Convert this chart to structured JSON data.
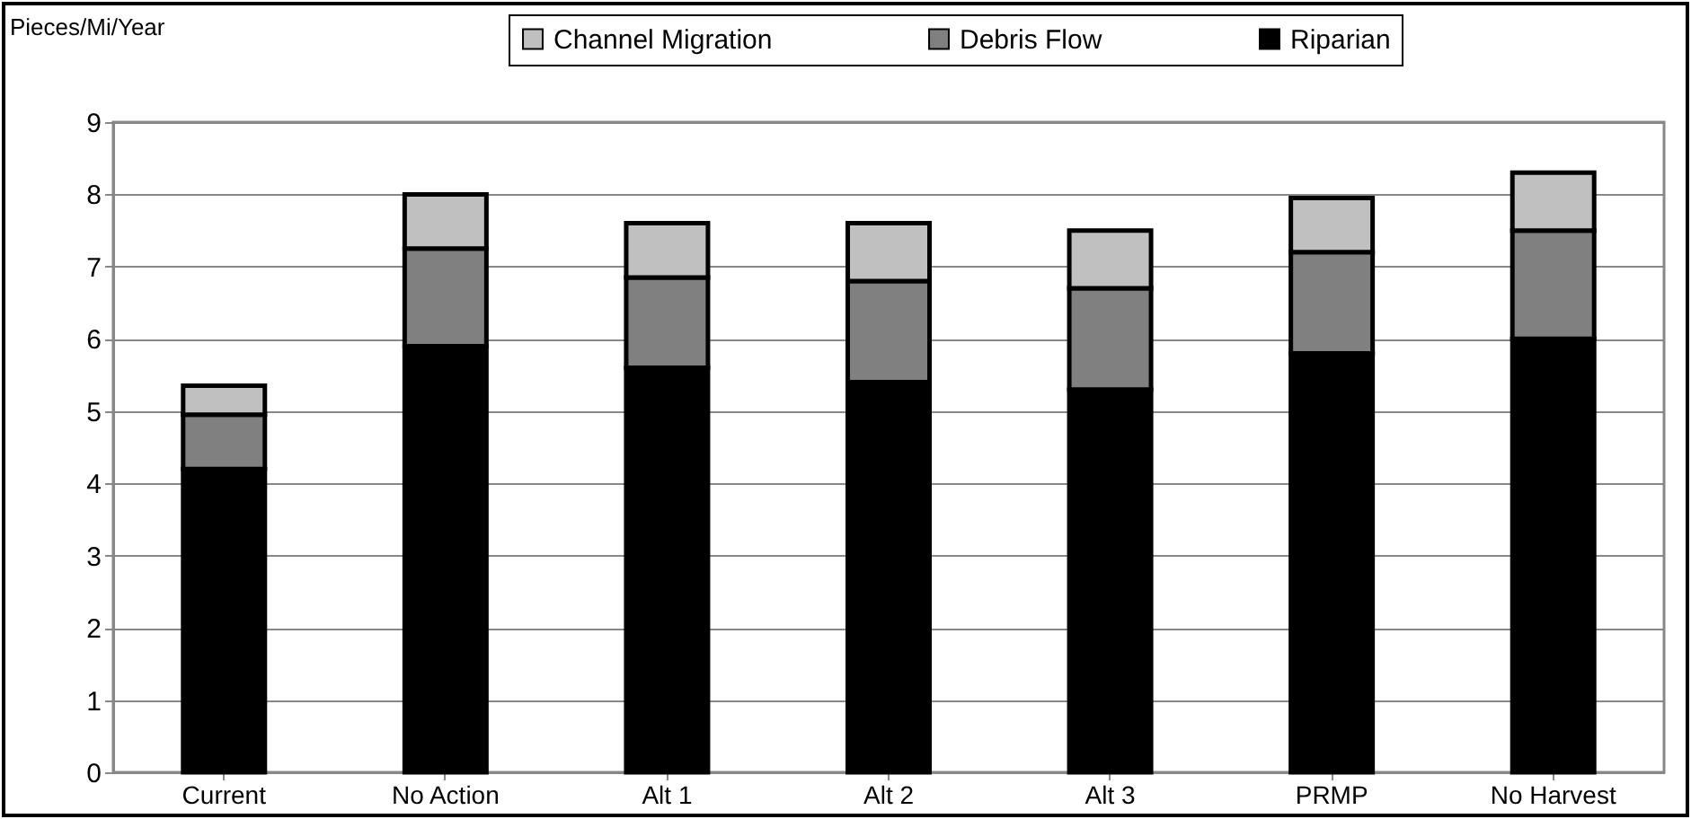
{
  "chart_data": {
    "type": "bar",
    "stacked": true,
    "ylabel": "Pieces/Mi/Year",
    "categories": [
      "Current",
      "No Action",
      "Alt 1",
      "Alt 2",
      "Alt 3",
      "PRMP",
      "No Harvest"
    ],
    "series": [
      {
        "name": "Riparian",
        "color": "#000000",
        "values": [
          4.2,
          5.9,
          5.6,
          5.4,
          5.3,
          5.8,
          6.0
        ]
      },
      {
        "name": "Debris Flow",
        "color": "#808080",
        "values": [
          0.75,
          1.35,
          1.25,
          1.4,
          1.4,
          1.4,
          1.5
        ]
      },
      {
        "name": "Channel Migration",
        "color": "#c0c0c0",
        "values": [
          0.4,
          0.75,
          0.75,
          0.8,
          0.8,
          0.75,
          0.8
        ]
      }
    ],
    "ylim": [
      0,
      9
    ],
    "yticks": [
      0,
      1,
      2,
      3,
      4,
      5,
      6,
      7,
      8,
      9
    ],
    "grid": "y",
    "legend": "top"
  }
}
